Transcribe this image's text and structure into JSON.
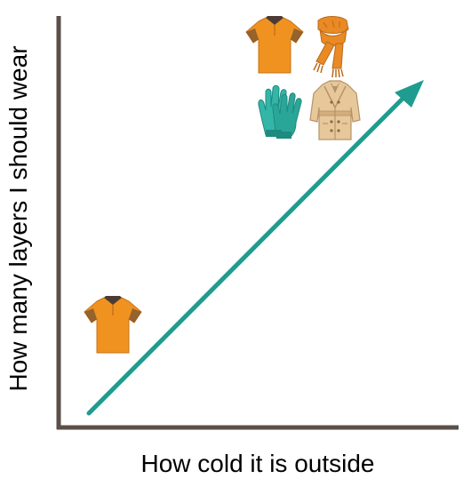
{
  "diagram": {
    "x_axis_label": "How cold it is outside",
    "y_axis_label": "How many layers I should wear",
    "colors": {
      "axis": "#5a4f4a",
      "arrow": "#1f9c8f",
      "shirt": "#f0921f",
      "shirt_dark": "#c8731a",
      "collar": "#4a3c34",
      "scarf": "#ea8a24",
      "scarf_dark": "#b86a1a",
      "gloves": "#33b6a8",
      "gloves_dark": "#1f8a80",
      "coat": "#e6c89a",
      "coat_dark": "#b89268"
    },
    "low_end_items": [
      "t-shirt-icon"
    ],
    "high_end_items": [
      "t-shirt-icon",
      "scarf-icon",
      "gloves-icon",
      "coat-icon"
    ]
  }
}
